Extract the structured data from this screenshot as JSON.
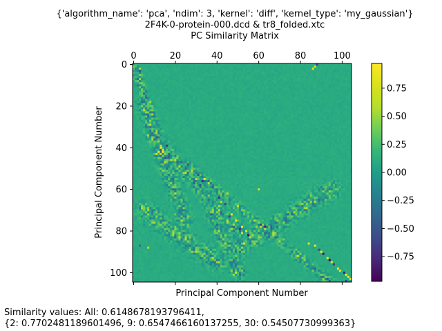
{
  "figure": {
    "title_lines": [
      "{'algorithm_name': 'pca', 'ndim': 3, 'kernel': 'diff', 'kernel_type': 'my_gaussian'}",
      "2F4K-0-protein-000.dcd & tr8_folded.xtc",
      "PC Similarity Matrix"
    ],
    "caption_lines": [
      "Similarity values: All: 0.6148678193796411,",
      "{2: 0.7702481189601496, 9: 0.6547466160137255, 30: 0.54507730999363}"
    ]
  },
  "chart_data": {
    "type": "heatmap",
    "title": "PC Similarity Matrix",
    "xlabel": "Principal Component Number",
    "ylabel": "Principal Component Number",
    "matrix_size": 105,
    "xlim": [
      -0.5,
      104.5
    ],
    "ylim": [
      104.5,
      -0.5
    ],
    "x_ticks": [
      0,
      20,
      40,
      60,
      80,
      100
    ],
    "y_ticks": [
      0,
      20,
      40,
      60,
      80,
      100
    ],
    "x_tick_labels_position": "top",
    "background_value": 0.1,
    "colormap": "viridis",
    "colorbar": {
      "vmin": -0.97,
      "vmax": 0.97,
      "ticks": [
        0.75,
        0.5,
        0.25,
        0.0,
        -0.25,
        -0.5,
        -0.75
      ],
      "tick_labels": [
        "0.75",
        "0.50",
        "0.25",
        "0.00",
        "−0.25",
        "−0.50",
        "−0.75"
      ]
    },
    "bands": [
      {
        "from": [
          0,
          0
        ],
        "to": [
          10,
          28
        ],
        "spread": 1.5
      },
      {
        "from": [
          5,
          20
        ],
        "to": [
          25,
          75
        ],
        "spread": 2.5
      },
      {
        "from": [
          10,
          35
        ],
        "to": [
          50,
          80
        ],
        "spread": 2.5
      },
      {
        "from": [
          25,
          48
        ],
        "to": [
          95,
          105
        ],
        "spread": 1.5
      },
      {
        "from": [
          50,
          88
        ],
        "to": [
          95,
          60
        ],
        "spread": 3.0
      },
      {
        "from": [
          50,
          100
        ],
        "to": [
          38,
          72
        ],
        "spread": 2.5
      },
      {
        "from": [
          5,
          70
        ],
        "to": [
          40,
          95
        ],
        "spread": 3.0
      }
    ],
    "highlights": [
      {
        "x": 3,
        "y": 2,
        "v": 0.55
      },
      {
        "x": 3,
        "y": 3,
        "v": -0.5
      },
      {
        "x": 88,
        "y": 0,
        "v": -0.7
      },
      {
        "x": 87,
        "y": 1,
        "v": 0.8
      },
      {
        "x": 86,
        "y": 2,
        "v": 0.85
      },
      {
        "x": 13,
        "y": 40,
        "v": 0.9
      },
      {
        "x": 14,
        "y": 41,
        "v": 0.8
      },
      {
        "x": 12,
        "y": 42,
        "v": 0.95
      },
      {
        "x": 11,
        "y": 43,
        "v": 0.75
      },
      {
        "x": 16,
        "y": 39,
        "v": -0.7
      },
      {
        "x": 28,
        "y": 51,
        "v": 0.7
      },
      {
        "x": 31,
        "y": 53,
        "v": -0.6
      },
      {
        "x": 34,
        "y": 55,
        "v": 0.85
      },
      {
        "x": 33,
        "y": 56,
        "v": -0.75
      },
      {
        "x": 36,
        "y": 57,
        "v": 0.65
      },
      {
        "x": 32,
        "y": 58,
        "v": -0.55
      },
      {
        "x": 45,
        "y": 62,
        "v": 0.6
      },
      {
        "x": 41,
        "y": 64,
        "v": -0.8
      },
      {
        "x": 42,
        "y": 66,
        "v": 0.7
      },
      {
        "x": 44,
        "y": 67,
        "v": -0.65
      },
      {
        "x": 60,
        "y": 60,
        "v": 0.75
      },
      {
        "x": 47,
        "y": 72,
        "v": 0.9
      },
      {
        "x": 46,
        "y": 73,
        "v": -0.6
      },
      {
        "x": 49,
        "y": 75,
        "v": 0.8
      },
      {
        "x": 52,
        "y": 78,
        "v": 0.95
      },
      {
        "x": 51,
        "y": 79,
        "v": -0.7
      },
      {
        "x": 54,
        "y": 80,
        "v": 0.85
      },
      {
        "x": 55,
        "y": 82,
        "v": -0.9
      },
      {
        "x": 56,
        "y": 83,
        "v": 0.7
      },
      {
        "x": 84,
        "y": 86,
        "v": 0.8
      },
      {
        "x": 87,
        "y": 87,
        "v": 0.9
      },
      {
        "x": 89,
        "y": 89,
        "v": -0.6
      },
      {
        "x": 90,
        "y": 90,
        "v": 0.95
      },
      {
        "x": 91,
        "y": 91,
        "v": -0.85
      },
      {
        "x": 93,
        "y": 93,
        "v": 0.9
      },
      {
        "x": 94,
        "y": 94,
        "v": -0.95
      },
      {
        "x": 95,
        "y": 95,
        "v": 0.85
      },
      {
        "x": 96,
        "y": 96,
        "v": -0.7
      },
      {
        "x": 98,
        "y": 98,
        "v": 0.95
      },
      {
        "x": 99,
        "y": 99,
        "v": 0.9
      },
      {
        "x": 101,
        "y": 100,
        "v": -0.8
      },
      {
        "x": 102,
        "y": 101,
        "v": 0.95
      },
      {
        "x": 103,
        "y": 102,
        "v": 0.85
      },
      {
        "x": 104,
        "y": 103,
        "v": 0.9
      },
      {
        "x": 102,
        "y": 104,
        "v": -0.6
      },
      {
        "x": 7,
        "y": 88,
        "v": 0.6
      },
      {
        "x": 3,
        "y": 87,
        "v": -0.4
      }
    ]
  }
}
